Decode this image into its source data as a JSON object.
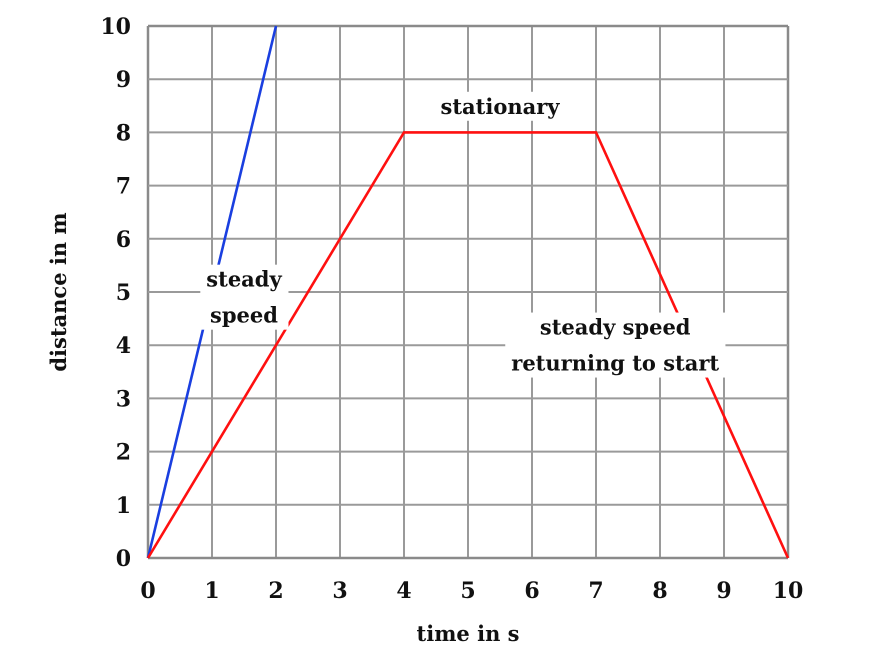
{
  "chart_data": {
    "type": "line",
    "title": "",
    "xlabel": "time in s",
    "ylabel": "distance in m",
    "xlim": [
      0,
      10
    ],
    "ylim": [
      0,
      10
    ],
    "grid": true,
    "x_ticks": [
      "0",
      "1",
      "2",
      "3",
      "4",
      "5",
      "6",
      "7",
      "8",
      "9",
      "10"
    ],
    "y_ticks": [
      "0",
      "1",
      "2",
      "3",
      "4",
      "5",
      "6",
      "7",
      "8",
      "9",
      "10"
    ],
    "series": [
      {
        "color": "#1a3fe0",
        "points": [
          [
            0,
            0
          ],
          [
            2,
            10
          ]
        ]
      },
      {
        "color": "#ff1010",
        "points": [
          [
            0,
            0
          ],
          [
            4,
            8
          ],
          [
            7,
            8
          ],
          [
            10,
            0
          ]
        ]
      }
    ],
    "annotations": [
      {
        "lines": [
          "steady",
          "speed"
        ],
        "at": [
          1.5,
          5.1
        ]
      },
      {
        "lines": [
          "stationary"
        ],
        "at": [
          5.5,
          8.35
        ]
      },
      {
        "lines": [
          "steady speed",
          "returning to start"
        ],
        "at": [
          7.3,
          4.2
        ]
      }
    ]
  }
}
